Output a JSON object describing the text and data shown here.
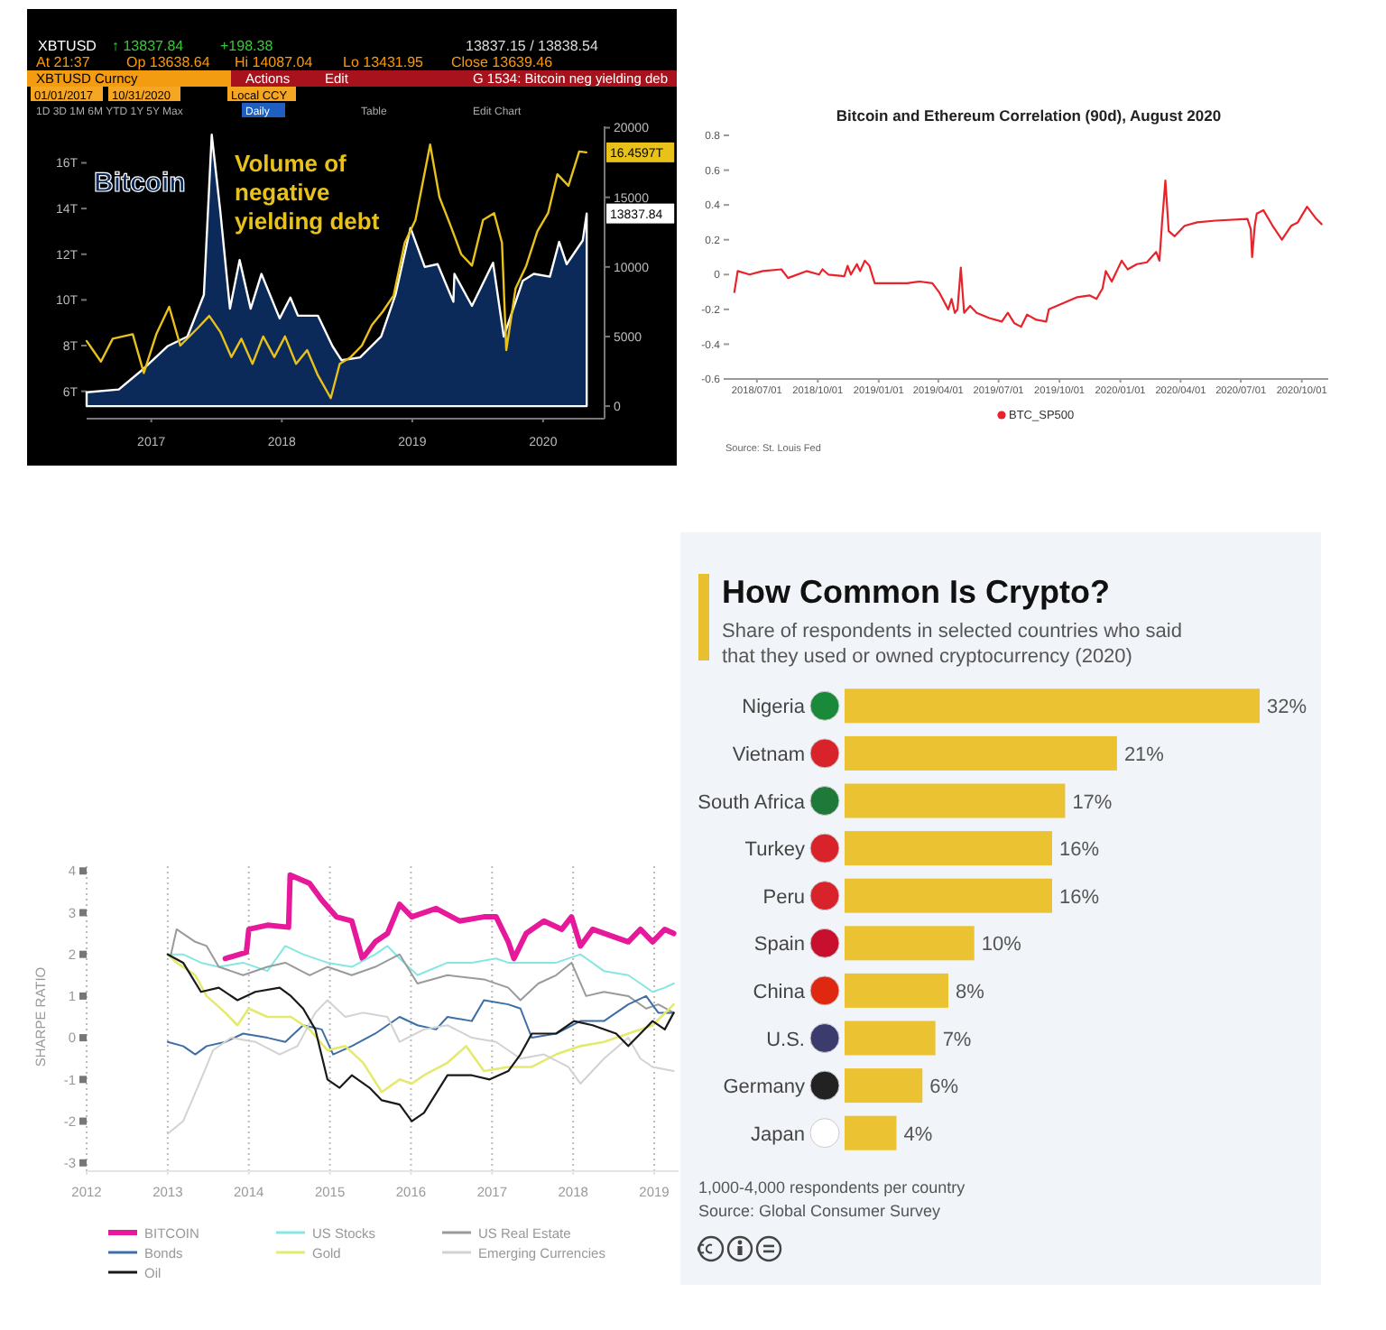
{
  "chart_data": [
    {
      "type": "line",
      "xlim": [
        "2017-01-01",
        "2020-12-20"
      ],
      "ylim": [
        4.8,
        17.6
      ],
      "y2lim": [
        -900,
        20100
      ],
      "xticks": [
        {
          "value": "2017-07-01",
          "label": "2017"
        },
        {
          "value": "2018-07-01",
          "label": "2018"
        },
        {
          "value": "2019-07-01",
          "label": "2019"
        },
        {
          "value": "2020-07-01",
          "label": "2020"
        }
      ],
      "yticks": [
        {
          "value": 6,
          "label": "6T"
        },
        {
          "value": 8,
          "label": "8T"
        },
        {
          "value": 10,
          "label": "10T"
        },
        {
          "value": 12,
          "label": "12T"
        },
        {
          "value": 14,
          "label": "14T"
        },
        {
          "value": 16,
          "label": "16T"
        }
      ],
      "y2ticks": [
        0,
        5000,
        10000,
        15000,
        20000
      ],
      "series": [
        {
          "name": "Bitcoin",
          "type": "area",
          "axis": "y2",
          "color": "#0b2a5a",
          "x": [
            "2017-01-01",
            "2017-04-01",
            "2017-06-10",
            "2017-08-15",
            "2017-10-10",
            "2017-11-25",
            "2017-12-17",
            "2018-01-10",
            "2018-02-06",
            "2018-03-05",
            "2018-04-05",
            "2018-05-05",
            "2018-06-25",
            "2018-07-25",
            "2018-08-15",
            "2018-10-10",
            "2018-11-20",
            "2018-12-15",
            "2019-02-05",
            "2019-04-05",
            "2019-05-15",
            "2019-06-26",
            "2019-08-05",
            "2019-09-10",
            "2019-10-24",
            "2019-10-27",
            "2019-12-15",
            "2020-02-12",
            "2020-03-13",
            "2020-05-05",
            "2020-06-05",
            "2020-07-20",
            "2020-08-15",
            "2020-09-05",
            "2020-10-20",
            "2020-10-31"
          ],
          "values": [
            1000,
            1200,
            2700,
            4300,
            5000,
            8000,
            19500,
            14000,
            7000,
            10500,
            7000,
            9500,
            6300,
            7800,
            6500,
            6500,
            4300,
            3300,
            3500,
            5000,
            8000,
            12800,
            10000,
            10200,
            7500,
            9500,
            7200,
            10300,
            5000,
            9000,
            9500,
            9300,
            11800,
            10200,
            11900,
            13837.84
          ],
          "value_labels": [
            null,
            null,
            null,
            null,
            null,
            null,
            null,
            null,
            null,
            null,
            null,
            null,
            null,
            null,
            null,
            null,
            null,
            null,
            null,
            null,
            null,
            null,
            null,
            null,
            null,
            null,
            null,
            null,
            null,
            null,
            null,
            null,
            null,
            null,
            null,
            "13837.84"
          ]
        },
        {
          "name": "Volume of negative yielding debt",
          "type": "line",
          "color": "#e8c21a",
          "x": [
            "2017-01-01",
            "2017-02-10",
            "2017-03-15",
            "2017-05-10",
            "2017-06-10",
            "2017-07-15",
            "2017-08-20",
            "2017-09-20",
            "2017-11-10",
            "2017-12-10",
            "2018-01-10",
            "2018-02-10",
            "2018-03-10",
            "2018-04-10",
            "2018-05-10",
            "2018-06-10",
            "2018-07-10",
            "2018-08-10",
            "2018-09-10",
            "2018-10-10",
            "2018-11-15",
            "2018-12-10",
            "2019-01-10",
            "2019-02-10",
            "2019-03-10",
            "2019-04-10",
            "2019-05-10",
            "2019-06-10",
            "2019-07-10",
            "2019-08-20",
            "2019-09-15",
            "2019-10-15",
            "2019-11-15",
            "2019-12-15",
            "2020-01-15",
            "2020-02-15",
            "2020-03-08",
            "2020-03-20",
            "2020-04-15",
            "2020-05-15",
            "2020-06-15",
            "2020-07-15",
            "2020-08-10",
            "2020-09-10",
            "2020-10-10",
            "2020-10-30"
          ],
          "values": [
            8.2,
            7.3,
            8.3,
            8.5,
            6.8,
            8.5,
            9.7,
            8.0,
            8.8,
            9.3,
            8.6,
            7.5,
            8.3,
            7.2,
            8.4,
            7.5,
            8.4,
            7.2,
            7.8,
            6.7,
            5.7,
            7.2,
            7.5,
            8.0,
            8.9,
            9.5,
            10.2,
            12.5,
            13.5,
            16.8,
            14.5,
            13.3,
            12.0,
            11.5,
            13.5,
            13.8,
            12.5,
            7.8,
            10.5,
            11.5,
            13.0,
            13.8,
            15.5,
            15.0,
            16.5,
            16.4597
          ],
          "value_labels": [
            null,
            null,
            null,
            null,
            null,
            null,
            null,
            null,
            null,
            null,
            null,
            null,
            null,
            null,
            null,
            null,
            null,
            null,
            null,
            null,
            null,
            null,
            null,
            null,
            null,
            null,
            null,
            null,
            null,
            null,
            null,
            null,
            null,
            null,
            null,
            null,
            null,
            null,
            null,
            null,
            null,
            null,
            null,
            null,
            null,
            "16.4597T"
          ]
        }
      ],
      "annotations": [
        "XBTUSD",
        "↑ 13837.84",
        "+198.38",
        "13837.15 / 13838.54",
        "At 21:37",
        "Op 13638.64",
        "Hi 14087.04",
        "Lo 13431.95",
        "Close 13639.46",
        "XBTUSD Curncy",
        "Actions",
        "Edit",
        "G 1534: Bitcoin neg yielding deb",
        "01/01/2017",
        "10/31/2020",
        "Local CCY",
        "1D 3D 1M 6M YTD 1Y 5Y Max",
        "Daily",
        "Table",
        "Edit Chart"
      ]
    },
    {
      "type": "line",
      "title": "Bitcoin and Ethereum Correlation (90d), August 2020",
      "xlim": [
        "2018-05-20",
        "2020-11-10"
      ],
      "ylim": [
        -0.6,
        0.8
      ],
      "xticks": [
        {
          "value": "2018-07-01",
          "label": "2018/07/01"
        },
        {
          "value": "2018-10-01",
          "label": "2018/10/01"
        },
        {
          "value": "2019-01-01",
          "label": "2019/01/01"
        },
        {
          "value": "2019-04-01",
          "label": "2019/04/01"
        },
        {
          "value": "2019-07-01",
          "label": "2019/07/01"
        },
        {
          "value": "2019-10-01",
          "label": "2019/10/01"
        },
        {
          "value": "2020-01-01",
          "label": "2020/01/01"
        },
        {
          "value": "2020-04-01",
          "label": "2020/04/01"
        },
        {
          "value": "2020-07-01",
          "label": "2020/07/01"
        },
        {
          "value": "2020-10-01",
          "label": "2020/10/01"
        }
      ],
      "yticks": [
        -0.6,
        -0.4,
        -0.2,
        0,
        0.2,
        0.4,
        0.6,
        0.8
      ],
      "legend": "bottom",
      "series": [
        {
          "name": "BTC_SP500",
          "color": "#e8232a",
          "x": [
            "2018-05-28",
            "2018-06-02",
            "2018-06-20",
            "2018-07-10",
            "2018-08-07",
            "2018-08-17",
            "2018-09-14",
            "2018-10-03",
            "2018-10-08",
            "2018-10-17",
            "2018-11-10",
            "2018-11-15",
            "2018-11-20",
            "2018-11-29",
            "2018-12-04",
            "2018-12-11",
            "2018-12-18",
            "2018-12-26",
            "2019-02-13",
            "2019-03-04",
            "2019-03-23",
            "2019-04-02",
            "2019-04-16",
            "2019-04-21",
            "2019-04-26",
            "2019-04-30",
            "2019-05-05",
            "2019-05-10",
            "2019-05-19",
            "2019-05-29",
            "2019-06-17",
            "2019-07-06",
            "2019-07-15",
            "2019-07-25",
            "2019-08-04",
            "2019-08-13",
            "2019-08-27",
            "2019-09-11",
            "2019-09-15",
            "2019-10-09",
            "2019-10-28",
            "2019-11-16",
            "2019-11-26",
            "2019-12-05",
            "2019-12-10",
            "2019-12-19",
            "2020-01-03",
            "2020-01-12",
            "2020-01-26",
            "2020-02-10",
            "2020-02-24",
            "2020-02-29",
            "2020-03-04",
            "2020-03-09",
            "2020-03-14",
            "2020-03-23",
            "2020-04-07",
            "2020-04-26",
            "2020-05-24",
            "2020-07-11",
            "2020-07-16",
            "2020-07-18",
            "2020-07-22",
            "2020-07-25",
            "2020-08-04",
            "2020-08-18",
            "2020-09-01",
            "2020-09-15",
            "2020-09-25",
            "2020-10-09",
            "2020-10-23",
            "2020-10-31"
          ],
          "values": [
            -0.1,
            0.02,
            0.0,
            0.02,
            0.03,
            -0.02,
            0.02,
            0.0,
            0.03,
            0.0,
            -0.01,
            0.05,
            0.0,
            0.06,
            0.02,
            0.08,
            0.05,
            -0.05,
            -0.05,
            -0.04,
            -0.05,
            -0.1,
            -0.2,
            -0.14,
            -0.22,
            -0.2,
            0.04,
            -0.22,
            -0.18,
            -0.22,
            -0.25,
            -0.27,
            -0.22,
            -0.28,
            -0.3,
            -0.23,
            -0.26,
            -0.27,
            -0.2,
            -0.16,
            -0.13,
            -0.12,
            -0.14,
            -0.08,
            0.02,
            -0.04,
            0.08,
            0.03,
            0.06,
            0.07,
            0.13,
            0.08,
            0.3,
            0.54,
            0.25,
            0.22,
            0.28,
            0.3,
            0.31,
            0.32,
            0.26,
            0.1,
            0.28,
            0.35,
            0.37,
            0.28,
            0.2,
            0.28,
            0.3,
            0.39,
            0.32,
            0.29
          ]
        }
      ],
      "annotations": [
        "Source: St. Louis Fed"
      ]
    },
    {
      "type": "line",
      "ylabel": "SHARPE RATIO",
      "xlim": [
        2012,
        2019.3
      ],
      "ylim": [
        -3.2,
        4.2
      ],
      "xticks": [
        2012,
        2013,
        2014,
        2015,
        2016,
        2017,
        2018,
        2019
      ],
      "yticks": [
        -3,
        -2,
        -1,
        0,
        1,
        2,
        3,
        4
      ],
      "grid": "x",
      "legend": "bottom",
      "series": [
        {
          "name": "BITCOIN",
          "color": "#e6199b",
          "x": [
            2013.71,
            2013.97,
            2014.0,
            2014.23,
            2014.49,
            2014.51,
            2014.75,
            2014.9,
            2015.08,
            2015.27,
            2015.4,
            2015.56,
            2015.71,
            2015.86,
            2016.01,
            2016.31,
            2016.6,
            2016.9,
            2017.05,
            2017.2,
            2017.27,
            2017.42,
            2017.64,
            2017.86,
            2017.98,
            2018.09,
            2018.24,
            2018.53,
            2018.68,
            2018.83,
            2018.98,
            2019.13,
            2019.24
          ],
          "values": [
            1.9,
            2.05,
            2.6,
            2.7,
            2.65,
            3.9,
            3.7,
            3.3,
            2.9,
            2.8,
            1.9,
            2.3,
            2.5,
            3.2,
            2.9,
            3.1,
            2.8,
            2.9,
            2.9,
            2.3,
            1.9,
            2.5,
            2.8,
            2.6,
            2.9,
            2.2,
            2.6,
            2.4,
            2.3,
            2.6,
            2.3,
            2.6,
            2.5
          ]
        },
        {
          "name": "US Stocks",
          "color": "#86e6e2",
          "x": [
            2013.0,
            2013.19,
            2013.41,
            2013.63,
            2013.93,
            2014.23,
            2014.45,
            2014.67,
            2014.97,
            2015.27,
            2015.56,
            2015.71,
            2015.86,
            2016.08,
            2016.45,
            2016.75,
            2017.05,
            2017.2,
            2017.49,
            2017.79,
            2018.09,
            2018.38,
            2018.68,
            2018.98,
            2019.13,
            2019.24
          ],
          "values": [
            2.0,
            2.0,
            1.8,
            1.7,
            1.8,
            1.6,
            2.2,
            2.0,
            1.8,
            1.7,
            2.0,
            2.2,
            1.9,
            1.5,
            1.8,
            1.8,
            1.9,
            1.8,
            1.8,
            1.8,
            2.0,
            1.6,
            1.5,
            1.1,
            1.2,
            1.3
          ]
        },
        {
          "name": "US Real Estate",
          "color": "#9a9a9a",
          "x": [
            2013.04,
            2013.11,
            2013.34,
            2013.48,
            2013.63,
            2013.93,
            2014.23,
            2014.45,
            2014.75,
            2014.97,
            2015.27,
            2015.56,
            2015.86,
            2016.08,
            2016.45,
            2016.9,
            2017.2,
            2017.35,
            2017.57,
            2017.79,
            2017.98,
            2018.16,
            2018.38,
            2018.68,
            2018.9,
            2019.05,
            2019.24
          ],
          "values": [
            2.0,
            2.6,
            2.3,
            2.2,
            1.7,
            1.5,
            1.7,
            1.8,
            1.5,
            1.7,
            1.5,
            1.7,
            2.0,
            1.3,
            1.5,
            1.4,
            1.2,
            0.9,
            1.3,
            1.5,
            1.8,
            1.0,
            1.1,
            1.0,
            0.7,
            0.8,
            0.6
          ]
        },
        {
          "name": "Bonds",
          "color": "#3d6ea6",
          "x": [
            2013.0,
            2013.19,
            2013.34,
            2013.48,
            2013.71,
            2013.93,
            2014.23,
            2014.45,
            2014.67,
            2014.9,
            2015.04,
            2015.27,
            2015.56,
            2015.86,
            2016.08,
            2016.31,
            2016.45,
            2016.75,
            2016.9,
            2017.2,
            2017.35,
            2017.49,
            2017.79,
            2018.09,
            2018.38,
            2018.68,
            2018.9,
            2019.05,
            2019.24
          ],
          "values": [
            -0.1,
            -0.2,
            -0.4,
            -0.2,
            -0.1,
            0.1,
            0.0,
            -0.1,
            0.3,
            0.2,
            -0.4,
            -0.2,
            0.1,
            0.5,
            0.3,
            0.2,
            0.5,
            0.4,
            0.9,
            0.8,
            0.7,
            0.0,
            0.1,
            0.4,
            0.4,
            0.8,
            1.0,
            0.6,
            0.6
          ]
        },
        {
          "name": "Gold",
          "color": "#e4ea6e",
          "x": [
            2013.0,
            2013.11,
            2013.34,
            2013.48,
            2013.71,
            2013.86,
            2014.0,
            2014.23,
            2014.52,
            2014.75,
            2014.97,
            2015.19,
            2015.41,
            2015.64,
            2015.86,
            2016.01,
            2016.16,
            2016.45,
            2016.68,
            2016.9,
            2017.2,
            2017.49,
            2017.79,
            2018.09,
            2018.38,
            2018.68,
            2018.98,
            2019.24
          ],
          "values": [
            2.0,
            1.8,
            1.5,
            1.0,
            0.6,
            0.3,
            0.7,
            0.5,
            0.5,
            0.2,
            -0.3,
            -0.2,
            -0.6,
            -1.3,
            -1.0,
            -1.1,
            -0.9,
            -0.6,
            -0.2,
            -0.8,
            -0.7,
            -0.7,
            -0.4,
            -0.2,
            -0.1,
            0.1,
            0.3,
            0.8
          ]
        },
        {
          "name": "Emerging Currencies",
          "color": "#d2d2d2",
          "x": [
            2013.0,
            2013.19,
            2013.41,
            2013.56,
            2013.78,
            2014.08,
            2014.38,
            2014.6,
            2014.82,
            2014.97,
            2015.19,
            2015.41,
            2015.71,
            2015.86,
            2016.16,
            2016.45,
            2016.75,
            2017.05,
            2017.35,
            2017.64,
            2017.94,
            2018.09,
            2018.38,
            2018.68,
            2018.83,
            2018.98,
            2019.24
          ],
          "values": [
            -2.3,
            -2.0,
            -1.0,
            -0.3,
            0.0,
            -0.1,
            -0.4,
            -0.2,
            0.6,
            0.9,
            0.5,
            0.6,
            0.5,
            -0.1,
            0.2,
            0.3,
            0.0,
            -0.1,
            -0.5,
            -0.4,
            -0.7,
            -1.1,
            -0.5,
            0.0,
            -0.5,
            -0.7,
            -0.8
          ]
        },
        {
          "name": "Oil",
          "color": "#1a1a1a",
          "x": [
            2013.0,
            2013.19,
            2013.41,
            2013.63,
            2013.86,
            2014.08,
            2014.38,
            2014.52,
            2014.67,
            2014.82,
            2014.97,
            2015.12,
            2015.27,
            2015.49,
            2015.64,
            2015.86,
            2016.01,
            2016.16,
            2016.45,
            2016.75,
            2016.97,
            2017.2,
            2017.35,
            2017.49,
            2017.79,
            2018.01,
            2018.24,
            2018.53,
            2018.68,
            2018.83,
            2018.98,
            2019.13,
            2019.24
          ],
          "values": [
            2.0,
            1.8,
            1.1,
            1.2,
            0.9,
            1.1,
            1.2,
            1.0,
            0.7,
            0.2,
            -1.0,
            -1.2,
            -0.9,
            -1.2,
            -1.5,
            -1.6,
            -2.0,
            -1.8,
            -0.9,
            -0.9,
            -1.0,
            -0.8,
            -0.4,
            0.1,
            0.1,
            0.4,
            0.3,
            0.1,
            -0.2,
            0.1,
            0.4,
            0.2,
            0.6
          ]
        }
      ]
    },
    {
      "type": "bar",
      "orientation": "horizontal",
      "title": "How Common Is Crypto?",
      "subtitle": "Share of respondents in selected countries who said that they used or owned cryptocurrency (2020)",
      "categories": [
        "Nigeria",
        "Vietnam",
        "South Africa",
        "Turkey",
        "Peru",
        "Spain",
        "China",
        "U.S.",
        "Germany",
        "Japan"
      ],
      "values": [
        32,
        21,
        17,
        16,
        16,
        10,
        8,
        7,
        6,
        4
      ],
      "color": "#ebc231",
      "value_labels": [
        "32%",
        "21%",
        "17%",
        "16%",
        "16%",
        "10%",
        "8%",
        "7%",
        "6%",
        "4%"
      ],
      "annotations": [
        "1,000-4,000 respondents per country",
        "Source: Global Consumer Survey"
      ]
    }
  ]
}
